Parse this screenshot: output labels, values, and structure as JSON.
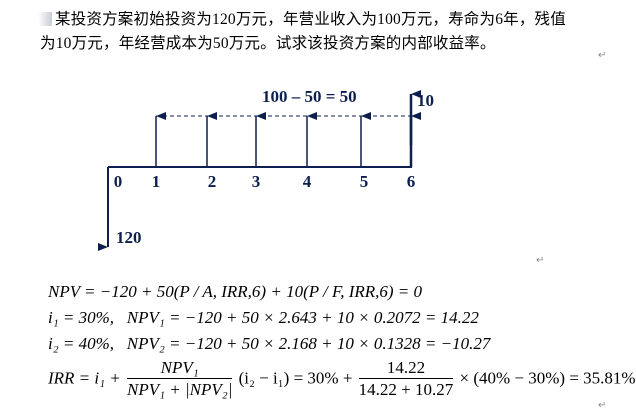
{
  "problem": {
    "line1": "某投资方案初始投资为120万元，年营业收入为100万元，寿命为6年，残值",
    "line2": "为10万元，年经营成本为50万元。试求该投资方案的内部收益率。"
  },
  "diagram": {
    "net_label": "100 – 50 = 50",
    "salvage_label": "10",
    "initial_label": "120",
    "periods": [
      "0",
      "1",
      "2",
      "3",
      "4",
      "5",
      "6"
    ],
    "color": "#0d1f4f"
  },
  "equations": {
    "eq1": "NPV = −120 + 50(P / A, IRR,6) + 10(P / F, IRR,6) = 0",
    "eq2_left": "i₁ = 30%,",
    "eq2_right": "NPV₁ = −120 + 50 × 2.643 + 10 × 0.2072 = 14.22",
    "eq3_left": "i₂ = 40%,",
    "eq3_right": "NPV₂ = −120 + 50 × 2.168 + 10 × 0.1328 = −10.27",
    "eq4_lhs": "IRR = i₁ +",
    "eq4_frac1_num": "NPV₁",
    "eq4_frac1_den": "NPV₁ + |NPV₂|",
    "eq4_mid": "(i₂ − i₁) = 30% +",
    "eq4_frac2_num": "14.22",
    "eq4_frac2_den": "14.22 + 10.27",
    "eq4_end": "× (40% − 30%) = 35.81%"
  },
  "paragraph_mark": "↵"
}
